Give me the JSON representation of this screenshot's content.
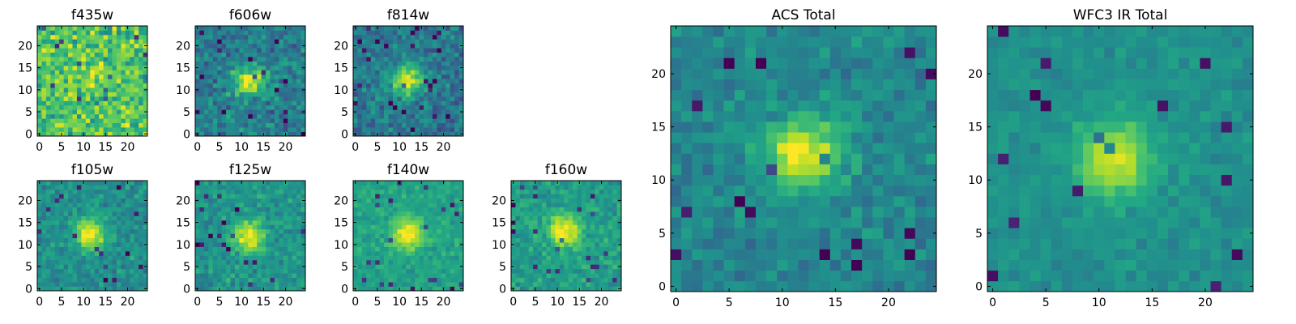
{
  "figure": {
    "colormap": "viridis",
    "grid_size": 25,
    "font_color": "#000000",
    "background": "#ffffff"
  },
  "chart_data": [
    {
      "type": "heatmap",
      "title": "f435w",
      "x_ticks": [
        0,
        5,
        10,
        15,
        20
      ],
      "y_ticks": [
        0,
        5,
        10,
        15,
        20
      ],
      "xlim": [
        -0.5,
        24.5
      ],
      "ylim": [
        -0.5,
        24.5
      ],
      "source_center": [
        11,
        13
      ],
      "source_amplitude": 0.12,
      "background_level": 0.72,
      "noise": 0.28
    },
    {
      "type": "heatmap",
      "title": "f606w",
      "x_ticks": [
        0,
        5,
        10,
        15,
        20
      ],
      "y_ticks": [
        0,
        5,
        10,
        15,
        20
      ],
      "xlim": [
        -0.5,
        24.5
      ],
      "ylim": [
        -0.5,
        24.5
      ],
      "source_center": [
        11.5,
        12
      ],
      "source_amplitude": 0.55,
      "background_level": 0.42,
      "noise": 0.22
    },
    {
      "type": "heatmap",
      "title": "f814w",
      "x_ticks": [
        0,
        5,
        10,
        15,
        20
      ],
      "y_ticks": [
        0,
        5,
        10,
        15,
        20
      ],
      "xlim": [
        -0.5,
        24.5
      ],
      "ylim": [
        -0.5,
        24.5
      ],
      "source_center": [
        12,
        12
      ],
      "source_amplitude": 0.6,
      "background_level": 0.4,
      "noise": 0.2
    },
    {
      "type": "heatmap",
      "title": "f105w",
      "x_ticks": [
        0,
        5,
        10,
        15,
        20
      ],
      "y_ticks": [
        0,
        5,
        10,
        15,
        20
      ],
      "xlim": [
        -0.5,
        24.5
      ],
      "ylim": [
        -0.5,
        24.5
      ],
      "source_center": [
        11.5,
        12.5
      ],
      "source_amplitude": 0.5,
      "background_level": 0.5,
      "noise": 0.16
    },
    {
      "type": "heatmap",
      "title": "f125w",
      "x_ticks": [
        0,
        5,
        10,
        15,
        20
      ],
      "y_ticks": [
        0,
        5,
        10,
        15,
        20
      ],
      "xlim": [
        -0.5,
        24.5
      ],
      "ylim": [
        -0.5,
        24.5
      ],
      "source_center": [
        11.5,
        12
      ],
      "source_amplitude": 0.5,
      "background_level": 0.52,
      "noise": 0.16
    },
    {
      "type": "heatmap",
      "title": "f140w",
      "x_ticks": [
        0,
        5,
        10,
        15,
        20
      ],
      "y_ticks": [
        0,
        5,
        10,
        15,
        20
      ],
      "xlim": [
        -0.5,
        24.5
      ],
      "ylim": [
        -0.5,
        24.5
      ],
      "source_center": [
        12,
        12.5
      ],
      "source_amplitude": 0.45,
      "background_level": 0.58,
      "noise": 0.12
    },
    {
      "type": "heatmap",
      "title": "f160w",
      "x_ticks": [
        0,
        5,
        10,
        15,
        20
      ],
      "y_ticks": [
        0,
        5,
        10,
        15,
        20
      ],
      "xlim": [
        -0.5,
        24.5
      ],
      "ylim": [
        -0.5,
        24.5
      ],
      "source_center": [
        11.5,
        13
      ],
      "source_amplitude": 0.5,
      "background_level": 0.56,
      "noise": 0.15
    },
    {
      "type": "heatmap",
      "title": "ACS Total",
      "x_ticks": [
        0,
        5,
        10,
        15,
        20
      ],
      "y_ticks": [
        0,
        5,
        10,
        15,
        20
      ],
      "xlim": [
        -0.5,
        24.5
      ],
      "ylim": [
        -0.5,
        24.5
      ],
      "source_center": [
        12,
        12.5
      ],
      "source_amplitude": 0.55,
      "background_level": 0.46,
      "noise": 0.14
    },
    {
      "type": "heatmap",
      "title": "WFC3 IR Total",
      "x_ticks": [
        0,
        5,
        10,
        15,
        20
      ],
      "y_ticks": [
        0,
        5,
        10,
        15,
        20
      ],
      "xlim": [
        -0.5,
        24.5
      ],
      "ylim": [
        -0.5,
        24.5
      ],
      "source_center": [
        11.5,
        12
      ],
      "source_amplitude": 0.45,
      "background_level": 0.5,
      "noise": 0.09
    }
  ]
}
